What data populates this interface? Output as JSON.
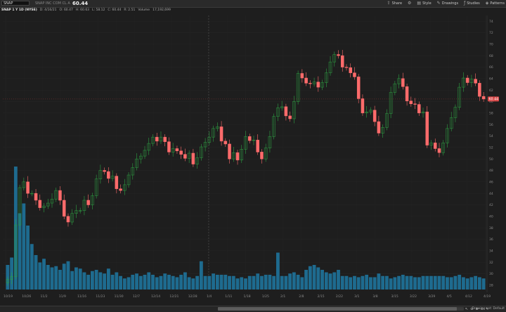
{
  "toolbar": {
    "symbol": "SNAP",
    "quote_text": "SNAP INC COM CL A",
    "last_price": "60.44",
    "buttons": [
      {
        "icon": "share-icon",
        "label": "Share"
      },
      {
        "icon": "settings-icon",
        "label": ""
      },
      {
        "icon": "style-icon",
        "label": "Style"
      },
      {
        "icon": "drawings-icon",
        "label": "Drawings"
      },
      {
        "icon": "studies-icon",
        "label": "Studies"
      },
      {
        "icon": "patterns-icon",
        "label": "Patterns"
      }
    ]
  },
  "info_line": {
    "symbol": "SNAP 1 Y 1D (NYSE)",
    "date": "D: 4/16/21",
    "open": "O: 60.47",
    "high": "H: 60.63",
    "low": "L: 58.12",
    "close": "C: 60.44",
    "change": "R: 2.51",
    "volume_label": "Volume",
    "volume_value": "17,192,699"
  },
  "bottom_bar": {
    "drawing_set": "Drawing set: Default",
    "tools": [
      "pointer-icon",
      "zoom-out-icon",
      "zoom-in-icon",
      "zoom-reset-icon",
      "drawing-icon"
    ]
  },
  "colors": {
    "up": "#2ea043",
    "down": "#ff6b6b",
    "volume": "#1e6b8f",
    "price_tag": "#d64545"
  },
  "chart_data": {
    "type": "candlestick",
    "y_axis_ticks": [
      "74",
      "72",
      "70",
      "68",
      "66",
      "64",
      "62",
      "60",
      "58",
      "56",
      "54",
      "52",
      "50",
      "48",
      "46",
      "44",
      "42",
      "40",
      "38",
      "36",
      "34",
      "32",
      "30",
      "28"
    ],
    "y_range": [
      27,
      75
    ],
    "x_axis_ticks": [
      "10/19",
      "10/26",
      "11/2",
      "11/9",
      "11/16",
      "11/23",
      "11/30",
      "12/7",
      "12/14",
      "12/21",
      "12/28",
      "1/4",
      "1/11",
      "1/18",
      "1/25",
      "2/1",
      "2/8",
      "2/15",
      "2/22",
      "3/1",
      "3/8",
      "3/15",
      "3/22",
      "3/29",
      "4/5",
      "4/12",
      "4/19"
    ],
    "current_price_tag": "60.44",
    "dashed_vertical_at": "1/4",
    "closes": [
      29.0,
      29.5,
      38.5,
      45.0,
      46.0,
      44.0,
      44.0,
      42.8,
      41.5,
      41.8,
      42.3,
      43.0,
      44.5,
      42.8,
      40.0,
      39.0,
      40.5,
      41.0,
      41.0,
      42.8,
      42.0,
      43.6,
      46.5,
      48.0,
      47.8,
      46.6,
      47.0,
      44.8,
      44.5,
      45.5,
      47.2,
      48.5,
      50.0,
      50.5,
      51.5,
      52.7,
      53.8,
      53.1,
      53.8,
      53.0,
      51.2,
      51.8,
      51.4,
      50.8,
      50.1,
      51.0,
      49.1,
      50.2,
      52.1,
      52.9,
      53.8,
      55.3,
      55.6,
      53.1,
      52.6,
      50.0,
      51.1,
      49.8,
      51.7,
      53.9,
      53.2,
      53.3,
      51.2,
      50.0,
      51.9,
      53.9,
      57.4,
      58.9,
      59.1,
      57.5,
      57.0,
      60.0,
      64.9,
      64.1,
      63.2,
      63.1,
      63.4,
      62.5,
      63.3,
      65.0,
      66.9,
      68.2,
      68.0,
      66.0,
      65.9,
      65.0,
      64.3,
      60.5,
      58.0,
      58.2,
      58.5,
      56.5,
      54.5,
      55.5,
      57.9,
      61.6,
      63.1,
      64.0,
      62.6,
      60.1,
      59.6,
      59.5,
      58.0,
      58.2,
      52.4,
      52.8,
      51.8,
      51.1,
      52.8,
      55.3,
      57.2,
      59.0,
      62.5,
      64.1,
      63.3,
      63.9,
      63.2,
      60.9,
      60.44
    ],
    "volume_range": [
      0,
      100
    ],
    "volumes": [
      20,
      26,
      100,
      62,
      70,
      52,
      37,
      28,
      22,
      25,
      20,
      18,
      19,
      16,
      21,
      23,
      15,
      18,
      17,
      14,
      12,
      15,
      16,
      14,
      13,
      17,
      12,
      14,
      11,
      9,
      10,
      12,
      13,
      11,
      12,
      14,
      12,
      10,
      11,
      13,
      12,
      11,
      10,
      12,
      14,
      10,
      9,
      11,
      23,
      11,
      11,
      13,
      12,
      12,
      12,
      11,
      11,
      9,
      10,
      9,
      11,
      11,
      13,
      11,
      12,
      12,
      11,
      30,
      11,
      11,
      13,
      14,
      12,
      10,
      16,
      19,
      20,
      18,
      16,
      14,
      13,
      14,
      16,
      11,
      11,
      10,
      11,
      10,
      11,
      12,
      10,
      10,
      13,
      11,
      11,
      9,
      10,
      11,
      12,
      11,
      11,
      10,
      10,
      11,
      11,
      11,
      11,
      11,
      11,
      10,
      10,
      11,
      12,
      10,
      9,
      10,
      11,
      10,
      9
    ]
  }
}
